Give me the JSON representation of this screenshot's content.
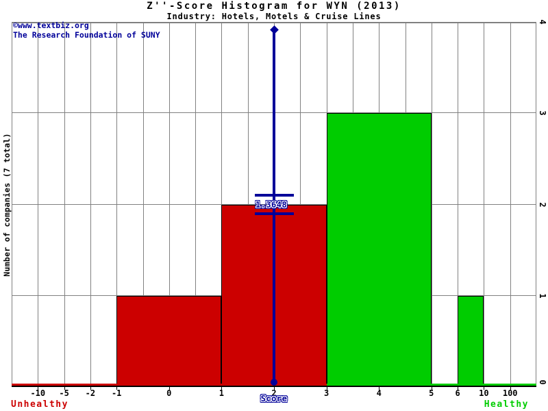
{
  "watermark": {
    "line1": "©www.textbiz.org",
    "line2": "The Research Foundation of SUNY"
  },
  "chart_data": {
    "type": "bar",
    "title": "Z''-Score Histogram for WYN (2013)",
    "subtitle": "Industry: Hotels, Motels & Cruise Lines",
    "xlabel": "Score",
    "ylabel": "Number of companies (7 total)",
    "total_companies": 7,
    "ylim": [
      0,
      4
    ],
    "y_ticks_right": [
      "0",
      "1",
      "2",
      "3",
      "4"
    ],
    "x_scale": "segmented non-linear score axis, 20 equal grid divisions",
    "grid_divisions": 20,
    "grid_on": true,
    "x_ticks": [
      {
        "label": "-10",
        "grid": 1
      },
      {
        "label": "-5",
        "grid": 2
      },
      {
        "label": "-2",
        "grid": 3
      },
      {
        "label": "-1",
        "grid": 4
      },
      {
        "label": "0",
        "grid": 6
      },
      {
        "label": "1",
        "grid": 8
      },
      {
        "label": "2",
        "grid": 10
      },
      {
        "label": "3",
        "grid": 12
      },
      {
        "label": "4",
        "grid": 14
      },
      {
        "label": "5",
        "grid": 16
      },
      {
        "label": "6",
        "grid": 17
      },
      {
        "label": "10",
        "grid": 18
      },
      {
        "label": "100",
        "grid": 19
      }
    ],
    "bins": [
      {
        "range": "-1 to 1",
        "count": 1,
        "status": "unhealthy",
        "g0": 4,
        "g1": 8
      },
      {
        "range": "1 to 3",
        "count": 2,
        "status": "unhealthy",
        "g0": 8,
        "g1": 12
      },
      {
        "range": "3 to 5",
        "count": 3,
        "status": "healthy",
        "g0": 12,
        "g1": 16
      },
      {
        "range": "6 to 10",
        "count": 1,
        "status": "healthy",
        "g0": 17,
        "g1": 18
      }
    ],
    "baseline": [
      {
        "g0": 0,
        "g1": 12,
        "status": "unhealthy"
      },
      {
        "g0": 12,
        "g1": 20,
        "status": "healthy"
      }
    ],
    "marker": {
      "label": "1.3648",
      "value": 1.3648,
      "grid": 10,
      "crossbar_counts": [
        2.1,
        1.9
      ]
    },
    "zone_labels": {
      "left": "Unhealthy",
      "right": "Healthy"
    },
    "colors": {
      "unhealthy": "#cc0000",
      "healthy": "#00cc00",
      "marker": "#000099",
      "grid": "#808080",
      "axis": "#000000",
      "title_text": "#000000",
      "watermark_text": "#000099"
    }
  }
}
